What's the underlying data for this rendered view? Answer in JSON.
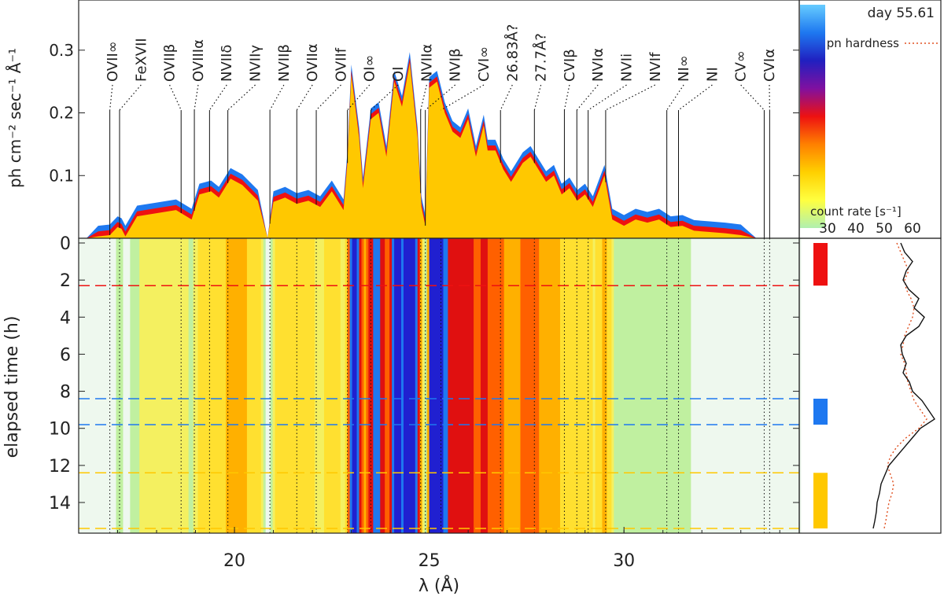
{
  "chart_data": {
    "type": "spectrum-timeseries",
    "xlabel": "λ (Å)",
    "xlim": [
      16,
      34.5
    ],
    "x_ticks": [
      20,
      25,
      30
    ],
    "spectrum": {
      "ylabel": "ph cm⁻² sec⁻¹ Å⁻¹",
      "ylim": [
        0,
        0.38
      ],
      "y_ticks": [
        0.1,
        0.2,
        0.3
      ],
      "series": [
        {
          "name": "interval-blue",
          "color": "#1e78f0",
          "offset": 0.017
        },
        {
          "name": "interval-red",
          "color": "#ee1111",
          "offset": 0.008
        },
        {
          "name": "interval-yellow",
          "color": "#ffc800",
          "offset": 0
        }
      ],
      "x": [
        16.2,
        16.5,
        16.8,
        17.0,
        17.1,
        17.2,
        17.5,
        18.0,
        18.5,
        18.9,
        19.1,
        19.4,
        19.6,
        19.9,
        20.2,
        20.6,
        20.85,
        21.0,
        21.3,
        21.6,
        21.9,
        22.2,
        22.5,
        22.8,
        22.9,
        23.0,
        23.2,
        23.3,
        23.5,
        23.7,
        23.9,
        24.1,
        24.3,
        24.5,
        24.7,
        24.8,
        24.9,
        25.0,
        25.2,
        25.4,
        25.6,
        25.8,
        26.0,
        26.2,
        26.4,
        26.5,
        26.7,
        26.9,
        27.1,
        27.2,
        27.4,
        27.6,
        27.8,
        28.0,
        28.2,
        28.4,
        28.6,
        28.8,
        29.0,
        29.2,
        29.5,
        29.7,
        30.0,
        30.3,
        30.6,
        30.9,
        31.2,
        31.5,
        31.8,
        32.2,
        32.6,
        33.0,
        33.4
      ],
      "values": [
        0.0,
        0.003,
        0.005,
        0.018,
        0.015,
        0.003,
        0.035,
        0.04,
        0.045,
        0.03,
        0.07,
        0.075,
        0.065,
        0.095,
        0.085,
        0.06,
        0.0,
        0.058,
        0.065,
        0.055,
        0.06,
        0.05,
        0.075,
        0.045,
        0.12,
        0.26,
        0.16,
        0.08,
        0.19,
        0.2,
        0.13,
        0.25,
        0.21,
        0.28,
        0.16,
        0.05,
        0.02,
        0.24,
        0.25,
        0.2,
        0.17,
        0.16,
        0.19,
        0.13,
        0.18,
        0.14,
        0.14,
        0.11,
        0.09,
        0.1,
        0.12,
        0.13,
        0.11,
        0.09,
        0.1,
        0.07,
        0.08,
        0.06,
        0.07,
        0.05,
        0.1,
        0.03,
        0.02,
        0.03,
        0.025,
        0.03,
        0.018,
        0.02,
        0.012,
        0.01,
        0.008,
        0.005,
        0.0
      ]
    },
    "lines": [
      {
        "label": "OVII∞",
        "lambda": 16.8
      },
      {
        "label": "FeXVII",
        "lambda": 17.05
      },
      {
        "label": "OVIIβ",
        "lambda": 18.63
      },
      {
        "label": "OVIIIα",
        "lambda": 18.97
      },
      {
        "label": "NVIIδ",
        "lambda": 19.36
      },
      {
        "label": "NVIIγ",
        "lambda": 19.83
      },
      {
        "label": "NVIIβ",
        "lambda": 20.91
      },
      {
        "label": "OVIIα",
        "lambda": 21.6
      },
      {
        "label": "OVIIf",
        "lambda": 22.1
      },
      {
        "label": "OI∞",
        "lambda": 22.9
      },
      {
        "label": "OI",
        "lambda": 23.5
      },
      {
        "label": "NVIIα",
        "lambda": 24.78
      },
      {
        "label": "NVIβ",
        "lambda": 24.9
      },
      {
        "label": "CVI∞",
        "lambda": 25.3
      },
      {
        "label": "26.83Å?",
        "lambda": 26.83
      },
      {
        "label": "27.7Å?",
        "lambda": 27.7
      },
      {
        "label": "CVIβ",
        "lambda": 28.47
      },
      {
        "label": "NVIα",
        "lambda": 28.79
      },
      {
        "label": "NVIi",
        "lambda": 29.08
      },
      {
        "label": "NVIf",
        "lambda": 29.53
      },
      {
        "label": "NI∞",
        "lambda": 31.1
      },
      {
        "label": "NI",
        "lambda": 31.4
      },
      {
        "label": "CV∞",
        "lambda": 33.6
      },
      {
        "label": "CVIα",
        "lambda": 33.74
      }
    ],
    "dynamic": {
      "ylabel": "elapsed time (h)",
      "ylim": [
        0,
        15.4
      ],
      "y_ticks": [
        0,
        2,
        4,
        6,
        8,
        10,
        12,
        14
      ],
      "intervals": [
        {
          "color": "#ee1111",
          "t_start": 0.0,
          "t_end": 2.3
        },
        {
          "color": "#1e78f0",
          "t_start": 8.4,
          "t_end": 9.8
        },
        {
          "color": "#ffc800",
          "t_start": 12.4,
          "t_end": 15.4
        }
      ],
      "boundaries": [
        {
          "t": 2.3,
          "color": "#ee1111"
        },
        {
          "t": 8.4,
          "color": "#1e78f0"
        },
        {
          "t": 9.8,
          "color": "#1e78f0"
        },
        {
          "t": 12.4,
          "color": "#ffc800"
        },
        {
          "t": 15.4,
          "color": "#ffc800"
        }
      ]
    },
    "colorbar": {
      "label": "count rate [s⁻¹]",
      "ticks": [
        30,
        40,
        50,
        60
      ],
      "colors": [
        "#66ccff",
        "#1e78f0",
        "#2020c0",
        "#8010a0",
        "#ee1111",
        "#ff8000",
        "#ffd000",
        "#ffff40",
        "#b0f0b0"
      ],
      "day_label": "day 55.61",
      "hardness_label": "pn hardness"
    },
    "lightcurve": {
      "t": [
        0,
        0.5,
        1,
        1.5,
        2,
        2.5,
        3,
        3.5,
        4,
        4.5,
        5,
        5.5,
        6,
        6.5,
        7,
        7.5,
        8,
        8.5,
        9,
        9.5,
        10,
        10.5,
        11,
        11.5,
        12,
        12.5,
        13,
        13.5,
        14,
        14.5,
        15,
        15.4
      ],
      "count_rate": [
        0.55,
        0.6,
        0.7,
        0.62,
        0.58,
        0.65,
        0.78,
        0.72,
        0.85,
        0.78,
        0.62,
        0.55,
        0.57,
        0.62,
        0.58,
        0.66,
        0.7,
        0.82,
        0.9,
        0.98,
        0.8,
        0.7,
        0.6,
        0.5,
        0.4,
        0.35,
        0.3,
        0.28,
        0.25,
        0.24,
        0.22,
        0.2
      ],
      "hardness": [
        0.5,
        0.55,
        0.6,
        0.65,
        0.6,
        0.62,
        0.68,
        0.72,
        0.7,
        0.65,
        0.6,
        0.58,
        0.55,
        0.6,
        0.62,
        0.64,
        0.68,
        0.72,
        0.8,
        0.88,
        0.78,
        0.62,
        0.5,
        0.42,
        0.38,
        0.42,
        0.46,
        0.44,
        0.4,
        0.38,
        0.36,
        0.34
      ]
    }
  }
}
